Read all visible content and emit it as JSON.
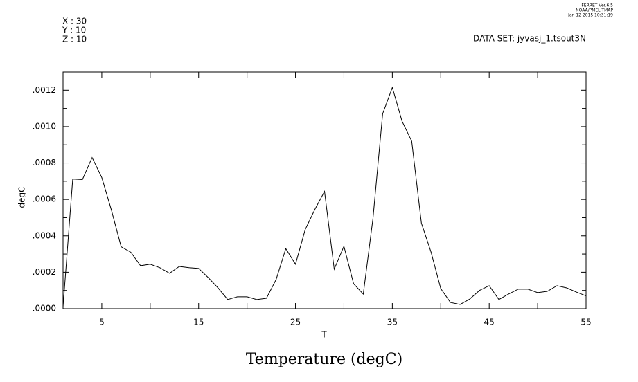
{
  "chart_data": {
    "type": "line",
    "title": "Temperature (degC)",
    "x_label": "T",
    "y_label": "degC",
    "info": [
      "X : 30",
      "Y : 10",
      "Z : 10"
    ],
    "dataset": "DATA SET: jyvasj_1.tsout3N",
    "stamp": [
      "FERRET  Ver.6.5",
      "NOAA/PMEL TMAP",
      "Jan 12 2015 10:31:19"
    ],
    "xlim": [
      1,
      55
    ],
    "ylim": [
      0,
      0.0013
    ],
    "xticks": [
      5,
      15,
      25,
      35,
      45,
      55
    ],
    "yticks": [
      {
        "value": 0,
        "label": ".0000"
      },
      {
        "value": 0.0002,
        "label": ".0002"
      },
      {
        "value": 0.0004,
        "label": ".0004"
      },
      {
        "value": 0.0006,
        "label": ".0006"
      },
      {
        "value": 0.0008,
        "label": ".0008"
      },
      {
        "value": 0.001,
        "label": ".0010"
      },
      {
        "value": 0.0012,
        "label": ".0012"
      }
    ],
    "color": "#000000",
    "x": [
      1,
      2,
      3,
      4,
      5,
      6,
      7,
      8,
      9,
      10,
      11,
      12,
      13,
      14,
      15,
      16,
      17,
      18,
      19,
      20,
      21,
      22,
      23,
      24,
      25,
      26,
      27,
      28,
      29,
      30,
      31,
      32,
      33,
      34,
      35,
      36,
      37,
      38,
      39,
      40,
      41,
      42,
      43,
      44,
      45,
      46,
      47,
      48,
      49,
      50,
      51,
      52,
      53,
      54,
      55
    ],
    "values": [
      1e-05,
      0.000712,
      0.000709,
      0.00083,
      0.00072,
      0.00054,
      0.00034,
      0.00031,
      0.000236,
      0.000244,
      0.000225,
      0.000194,
      0.000232,
      0.000225,
      0.000221,
      0.00017,
      0.000114,
      5e-05,
      6.5e-05,
      6.5e-05,
      5e-05,
      5.7e-05,
      0.00016,
      0.00033,
      0.000244,
      0.000434,
      0.000545,
      0.000644,
      0.000217,
      0.000343,
      0.000137,
      8e-05,
      0.000495,
      0.00107,
      0.001215,
      0.00103,
      0.00092,
      0.00047,
      0.00031,
      0.00011,
      3.4e-05,
      2.3e-05,
      5.3e-05,
      0.0001,
      0.000126,
      5e-05,
      8e-05,
      0.000107,
      0.000107,
      8.8e-05,
      9.5e-05,
      0.000126,
      0.000114,
      9.1e-05,
      7e-05
    ]
  }
}
